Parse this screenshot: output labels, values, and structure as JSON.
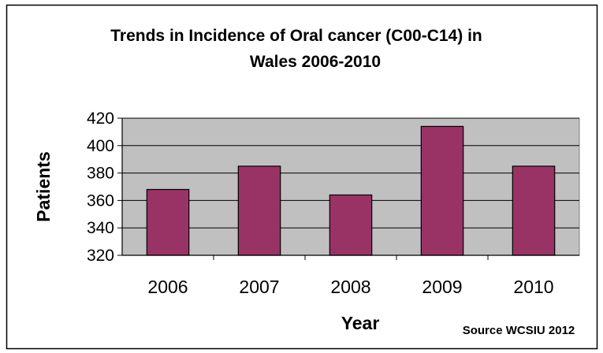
{
  "chart_data": {
    "type": "bar",
    "title_lines": [
      "Trends in Incidence of Oral cancer (C00-C14) in",
      "Wales 2006-2010"
    ],
    "xlabel": "Year",
    "ylabel": "Patients",
    "categories": [
      "2006",
      "2007",
      "2008",
      "2009",
      "2010"
    ],
    "values": [
      368,
      385,
      364,
      414,
      385
    ],
    "ylim": [
      320,
      420
    ],
    "yticks": [
      320,
      340,
      360,
      380,
      400,
      420
    ],
    "grid": true,
    "legend": "none",
    "source_note": "Source WCSIU 2012",
    "colors": {
      "bar_fill": "#993366",
      "plot_background": "#c0c0c0",
      "frame": "#000000"
    }
  }
}
